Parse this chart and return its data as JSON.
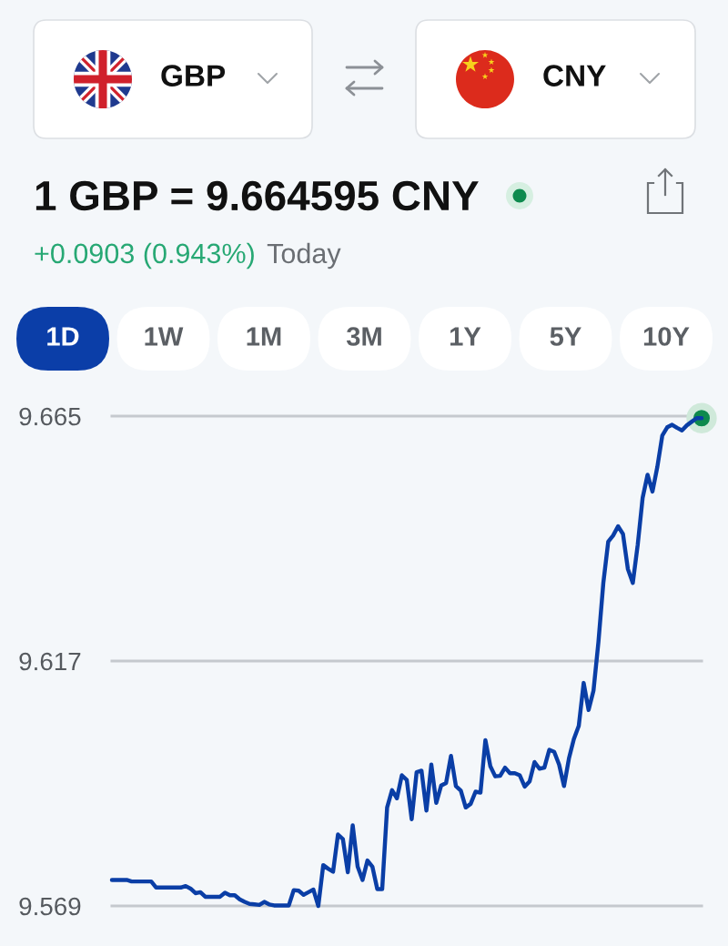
{
  "chart_data": {
    "type": "line",
    "title": "1 GBP = 9.664595 CNY",
    "subtitle": "+0.0903 (0.943%)",
    "annotations": [
      "GBP",
      "CNY",
      "1D",
      "1W",
      "1M",
      "3M",
      "1Y",
      "5Y",
      "10Y",
      "Today"
    ],
    "categories": [
      null,
      null,
      null,
      null,
      null,
      null,
      null,
      null,
      null,
      null,
      null,
      null,
      null,
      null,
      null,
      null,
      null,
      null,
      null,
      null,
      null,
      null,
      null,
      null,
      null,
      null,
      null,
      null,
      null,
      null,
      null,
      null,
      null,
      null,
      null,
      null,
      null,
      null,
      null,
      null,
      null,
      null,
      null,
      null,
      null,
      null,
      null,
      null,
      null,
      null,
      null,
      null,
      null,
      null,
      null,
      null,
      null,
      null,
      null,
      null,
      null,
      null,
      null,
      null,
      null,
      null,
      null,
      null,
      null,
      null,
      null,
      null,
      null,
      null,
      null,
      null,
      null,
      null,
      null,
      null,
      null,
      null,
      null,
      null,
      null,
      null,
      null,
      null,
      null,
      null,
      null,
      null,
      null,
      null,
      null,
      null,
      null,
      null,
      null,
      null,
      null,
      null,
      null,
      null,
      null,
      null,
      null,
      null,
      null,
      null,
      null,
      null,
      null,
      null,
      null,
      null,
      null,
      null,
      null,
      null,
      null
    ],
    "series": [
      {
        "color": "#0a3ea6",
        "line_style": "solid",
        "values": [
          9.5741,
          9.5741,
          9.5741,
          9.5741,
          9.5738,
          9.5738,
          9.5738,
          9.5738,
          9.5738,
          9.5726,
          9.5726,
          9.5726,
          9.5726,
          9.5726,
          9.5726,
          9.5729,
          9.5724,
          9.5715,
          9.5717,
          9.5708,
          9.5708,
          9.5708,
          9.5708,
          9.5716,
          9.5711,
          9.5711,
          9.5703,
          9.5698,
          9.5694,
          9.5693,
          9.5692,
          9.5698,
          9.5693,
          9.5691,
          9.5691,
          9.5691,
          9.5691,
          9.5721,
          9.572,
          9.5712,
          9.5717,
          9.5722,
          9.569,
          9.577,
          9.5763,
          9.5757,
          9.583,
          9.5821,
          9.5756,
          9.5848,
          9.5767,
          9.5741,
          9.5779,
          9.5767,
          9.5723,
          9.5723,
          9.5883,
          9.5917,
          9.5901,
          9.5946,
          9.5937,
          9.586,
          9.5952,
          9.5955,
          9.5877,
          9.5967,
          9.5892,
          9.5926,
          9.5931,
          9.5984,
          9.5925,
          9.5916,
          9.5883,
          9.589,
          9.5914,
          9.5912,
          9.6015,
          9.5964,
          9.5944,
          9.5945,
          9.5961,
          9.595,
          9.595,
          9.5946,
          9.5924,
          9.5934,
          9.5972,
          9.5959,
          9.5961,
          9.5996,
          9.5992,
          9.5967,
          9.5925,
          9.5979,
          9.6017,
          9.6043,
          9.6127,
          9.6074,
          9.6112,
          9.6207,
          9.6323,
          9.6404,
          9.6416,
          9.6434,
          9.6419,
          9.635,
          9.6323,
          9.6398,
          9.649,
          9.6535,
          9.6502,
          9.6551,
          9.6612,
          9.6628,
          9.6633,
          9.6627,
          9.6622,
          9.6632,
          9.6639,
          9.6646,
          9.6646
        ]
      },
      {
        "type": "scatter",
        "color": "#0e8a4e",
        "marker": "circle",
        "values": [
          null,
          null,
          null,
          null,
          null,
          null,
          null,
          null,
          null,
          null,
          null,
          null,
          null,
          null,
          null,
          null,
          null,
          null,
          null,
          null,
          null,
          null,
          null,
          null,
          null,
          null,
          null,
          null,
          null,
          null,
          null,
          null,
          null,
          null,
          null,
          null,
          null,
          null,
          null,
          null,
          null,
          null,
          null,
          null,
          null,
          null,
          null,
          null,
          null,
          null,
          null,
          null,
          null,
          null,
          null,
          null,
          null,
          null,
          null,
          null,
          null,
          null,
          null,
          null,
          null,
          null,
          null,
          null,
          null,
          null,
          null,
          null,
          null,
          null,
          null,
          null,
          null,
          null,
          null,
          null,
          null,
          null,
          null,
          null,
          null,
          null,
          null,
          null,
          null,
          null,
          null,
          null,
          null,
          null,
          null,
          null,
          null,
          null,
          null,
          null,
          null,
          null,
          null,
          null,
          null,
          null,
          null,
          null,
          null,
          null,
          null,
          null,
          null,
          null,
          null,
          null,
          null,
          null,
          null,
          null,
          9.6646
        ]
      }
    ],
    "ylim": [
      9.569,
      9.665
    ],
    "yticks": [
      9.569,
      9.617,
      9.665
    ],
    "grid": "y",
    "tick_labels": "y"
  }
}
